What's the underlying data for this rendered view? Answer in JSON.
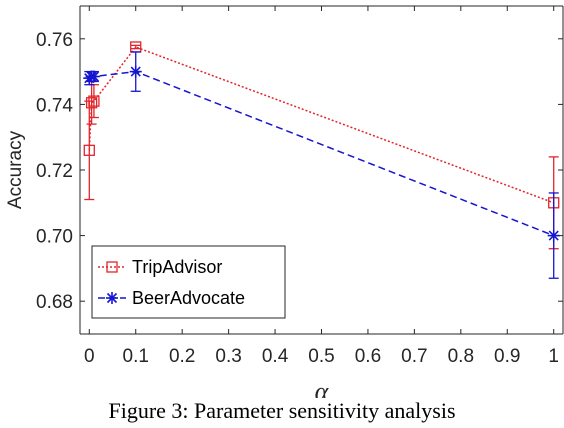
{
  "chart_data": {
    "type": "line",
    "title": "",
    "xlabel": "α",
    "ylabel": "Accuracy",
    "xlim": [
      -0.02,
      1.02
    ],
    "ylim": [
      0.67,
      0.77
    ],
    "x_ticks": [
      "0",
      "0.1",
      "0.2",
      "0.3",
      "0.4",
      "0.5",
      "0.6",
      "0.7",
      "0.8",
      "0.9",
      "1"
    ],
    "x_tick_values": [
      0,
      0.1,
      0.2,
      0.3,
      0.4,
      0.5,
      0.6,
      0.7,
      0.8,
      0.9,
      1
    ],
    "y_ticks": [
      "0.68",
      "0.70",
      "0.72",
      "0.74",
      "0.76"
    ],
    "y_tick_values": [
      0.68,
      0.7,
      0.72,
      0.74,
      0.76
    ],
    "grid": false,
    "legend_position": "bottom-left",
    "series": [
      {
        "name": "TripAdvisor",
        "color": "#e3242b",
        "marker": "square",
        "line_style": "dotted",
        "points": [
          {
            "x": 0.0,
            "y": 0.726,
            "err_low": 0.711,
            "err_high": 0.741
          },
          {
            "x": 0.005,
            "y": 0.7405,
            "err_low": 0.734,
            "err_high": 0.747
          },
          {
            "x": 0.01,
            "y": 0.741,
            "err_low": 0.736,
            "err_high": 0.746
          },
          {
            "x": 0.1,
            "y": 0.7575,
            "err_low": 0.757,
            "err_high": 0.758
          },
          {
            "x": 1.0,
            "y": 0.71,
            "err_low": 0.696,
            "err_high": 0.724
          }
        ]
      },
      {
        "name": "BeerAdvocate",
        "color": "#1515d1",
        "marker": "asterisk",
        "line_style": "dashed",
        "points": [
          {
            "x": 0.0,
            "y": 0.748,
            "err_low": 0.746,
            "err_high": 0.75
          },
          {
            "x": 0.005,
            "y": 0.7485,
            "err_low": 0.747,
            "err_high": 0.75
          },
          {
            "x": 0.01,
            "y": 0.7485,
            "err_low": 0.747,
            "err_high": 0.75
          },
          {
            "x": 0.1,
            "y": 0.75,
            "err_low": 0.744,
            "err_high": 0.756
          },
          {
            "x": 1.0,
            "y": 0.7,
            "err_low": 0.687,
            "err_high": 0.713
          }
        ]
      }
    ]
  },
  "caption": "Figure 3: Parameter sensitivity analysis"
}
